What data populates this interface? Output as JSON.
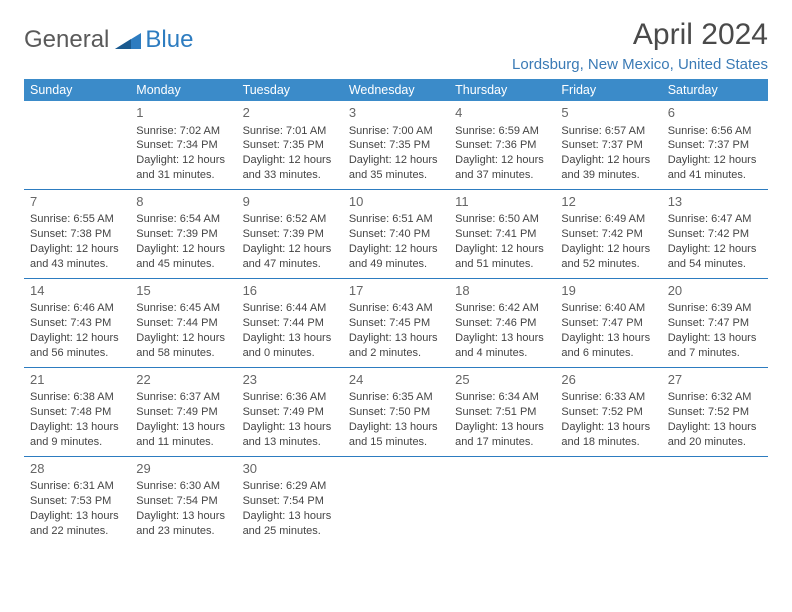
{
  "logo": {
    "textA": "General",
    "textB": "Blue"
  },
  "title": "April 2024",
  "location": "Lordsburg, New Mexico, United States",
  "headerColor": "#3b8bc9",
  "borderColor": "#2d7cc0",
  "days": [
    "Sunday",
    "Monday",
    "Tuesday",
    "Wednesday",
    "Thursday",
    "Friday",
    "Saturday"
  ],
  "weeks": [
    [
      null,
      {
        "n": "1",
        "sr": "Sunrise: 7:02 AM",
        "ss": "Sunset: 7:34 PM",
        "d1": "Daylight: 12 hours",
        "d2": "and 31 minutes."
      },
      {
        "n": "2",
        "sr": "Sunrise: 7:01 AM",
        "ss": "Sunset: 7:35 PM",
        "d1": "Daylight: 12 hours",
        "d2": "and 33 minutes."
      },
      {
        "n": "3",
        "sr": "Sunrise: 7:00 AM",
        "ss": "Sunset: 7:35 PM",
        "d1": "Daylight: 12 hours",
        "d2": "and 35 minutes."
      },
      {
        "n": "4",
        "sr": "Sunrise: 6:59 AM",
        "ss": "Sunset: 7:36 PM",
        "d1": "Daylight: 12 hours",
        "d2": "and 37 minutes."
      },
      {
        "n": "5",
        "sr": "Sunrise: 6:57 AM",
        "ss": "Sunset: 7:37 PM",
        "d1": "Daylight: 12 hours",
        "d2": "and 39 minutes."
      },
      {
        "n": "6",
        "sr": "Sunrise: 6:56 AM",
        "ss": "Sunset: 7:37 PM",
        "d1": "Daylight: 12 hours",
        "d2": "and 41 minutes."
      }
    ],
    [
      {
        "n": "7",
        "sr": "Sunrise: 6:55 AM",
        "ss": "Sunset: 7:38 PM",
        "d1": "Daylight: 12 hours",
        "d2": "and 43 minutes."
      },
      {
        "n": "8",
        "sr": "Sunrise: 6:54 AM",
        "ss": "Sunset: 7:39 PM",
        "d1": "Daylight: 12 hours",
        "d2": "and 45 minutes."
      },
      {
        "n": "9",
        "sr": "Sunrise: 6:52 AM",
        "ss": "Sunset: 7:39 PM",
        "d1": "Daylight: 12 hours",
        "d2": "and 47 minutes."
      },
      {
        "n": "10",
        "sr": "Sunrise: 6:51 AM",
        "ss": "Sunset: 7:40 PM",
        "d1": "Daylight: 12 hours",
        "d2": "and 49 minutes."
      },
      {
        "n": "11",
        "sr": "Sunrise: 6:50 AM",
        "ss": "Sunset: 7:41 PM",
        "d1": "Daylight: 12 hours",
        "d2": "and 51 minutes."
      },
      {
        "n": "12",
        "sr": "Sunrise: 6:49 AM",
        "ss": "Sunset: 7:42 PM",
        "d1": "Daylight: 12 hours",
        "d2": "and 52 minutes."
      },
      {
        "n": "13",
        "sr": "Sunrise: 6:47 AM",
        "ss": "Sunset: 7:42 PM",
        "d1": "Daylight: 12 hours",
        "d2": "and 54 minutes."
      }
    ],
    [
      {
        "n": "14",
        "sr": "Sunrise: 6:46 AM",
        "ss": "Sunset: 7:43 PM",
        "d1": "Daylight: 12 hours",
        "d2": "and 56 minutes."
      },
      {
        "n": "15",
        "sr": "Sunrise: 6:45 AM",
        "ss": "Sunset: 7:44 PM",
        "d1": "Daylight: 12 hours",
        "d2": "and 58 minutes."
      },
      {
        "n": "16",
        "sr": "Sunrise: 6:44 AM",
        "ss": "Sunset: 7:44 PM",
        "d1": "Daylight: 13 hours",
        "d2": "and 0 minutes."
      },
      {
        "n": "17",
        "sr": "Sunrise: 6:43 AM",
        "ss": "Sunset: 7:45 PM",
        "d1": "Daylight: 13 hours",
        "d2": "and 2 minutes."
      },
      {
        "n": "18",
        "sr": "Sunrise: 6:42 AM",
        "ss": "Sunset: 7:46 PM",
        "d1": "Daylight: 13 hours",
        "d2": "and 4 minutes."
      },
      {
        "n": "19",
        "sr": "Sunrise: 6:40 AM",
        "ss": "Sunset: 7:47 PM",
        "d1": "Daylight: 13 hours",
        "d2": "and 6 minutes."
      },
      {
        "n": "20",
        "sr": "Sunrise: 6:39 AM",
        "ss": "Sunset: 7:47 PM",
        "d1": "Daylight: 13 hours",
        "d2": "and 7 minutes."
      }
    ],
    [
      {
        "n": "21",
        "sr": "Sunrise: 6:38 AM",
        "ss": "Sunset: 7:48 PM",
        "d1": "Daylight: 13 hours",
        "d2": "and 9 minutes."
      },
      {
        "n": "22",
        "sr": "Sunrise: 6:37 AM",
        "ss": "Sunset: 7:49 PM",
        "d1": "Daylight: 13 hours",
        "d2": "and 11 minutes."
      },
      {
        "n": "23",
        "sr": "Sunrise: 6:36 AM",
        "ss": "Sunset: 7:49 PM",
        "d1": "Daylight: 13 hours",
        "d2": "and 13 minutes."
      },
      {
        "n": "24",
        "sr": "Sunrise: 6:35 AM",
        "ss": "Sunset: 7:50 PM",
        "d1": "Daylight: 13 hours",
        "d2": "and 15 minutes."
      },
      {
        "n": "25",
        "sr": "Sunrise: 6:34 AM",
        "ss": "Sunset: 7:51 PM",
        "d1": "Daylight: 13 hours",
        "d2": "and 17 minutes."
      },
      {
        "n": "26",
        "sr": "Sunrise: 6:33 AM",
        "ss": "Sunset: 7:52 PM",
        "d1": "Daylight: 13 hours",
        "d2": "and 18 minutes."
      },
      {
        "n": "27",
        "sr": "Sunrise: 6:32 AM",
        "ss": "Sunset: 7:52 PM",
        "d1": "Daylight: 13 hours",
        "d2": "and 20 minutes."
      }
    ],
    [
      {
        "n": "28",
        "sr": "Sunrise: 6:31 AM",
        "ss": "Sunset: 7:53 PM",
        "d1": "Daylight: 13 hours",
        "d2": "and 22 minutes."
      },
      {
        "n": "29",
        "sr": "Sunrise: 6:30 AM",
        "ss": "Sunset: 7:54 PM",
        "d1": "Daylight: 13 hours",
        "d2": "and 23 minutes."
      },
      {
        "n": "30",
        "sr": "Sunrise: 6:29 AM",
        "ss": "Sunset: 7:54 PM",
        "d1": "Daylight: 13 hours",
        "d2": "and 25 minutes."
      },
      null,
      null,
      null,
      null
    ]
  ]
}
